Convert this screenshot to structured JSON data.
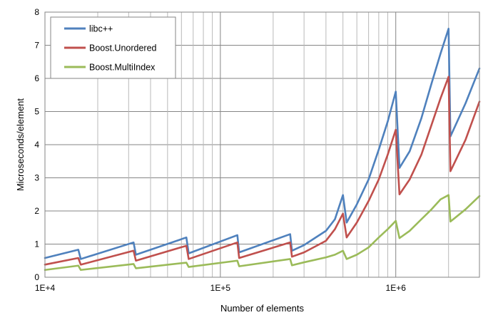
{
  "chart_data": {
    "type": "line",
    "x_scale": "log",
    "xlabel": "Number of elements",
    "ylabel": "Microseconds/element",
    "xlim": [
      10000,
      3000000
    ],
    "ylim": [
      0,
      8
    ],
    "x_ticks": [
      {
        "value": 10000,
        "label": "1E+4"
      },
      {
        "value": 100000,
        "label": "1E+5"
      },
      {
        "value": 1000000,
        "label": "1E+6"
      }
    ],
    "y_ticks": [
      0,
      1,
      2,
      3,
      4,
      5,
      6,
      7,
      8
    ],
    "grid": true,
    "legend_position": "top-left",
    "series": [
      {
        "name": "libc++",
        "color": "#4f81bd",
        "points": [
          [
            10000,
            0.58
          ],
          [
            15500,
            0.83
          ],
          [
            16000,
            0.55
          ],
          [
            32000,
            1.05
          ],
          [
            33000,
            0.68
          ],
          [
            64000,
            1.2
          ],
          [
            66000,
            0.72
          ],
          [
            125000,
            1.27
          ],
          [
            128000,
            0.75
          ],
          [
            250000,
            1.3
          ],
          [
            256000,
            0.8
          ],
          [
            300000,
            0.97
          ],
          [
            400000,
            1.4
          ],
          [
            450000,
            1.75
          ],
          [
            500000,
            2.48
          ],
          [
            525000,
            1.65
          ],
          [
            600000,
            2.2
          ],
          [
            700000,
            2.95
          ],
          [
            800000,
            3.85
          ],
          [
            900000,
            4.7
          ],
          [
            1000000,
            5.6
          ],
          [
            1050000,
            3.3
          ],
          [
            1200000,
            3.8
          ],
          [
            1400000,
            4.8
          ],
          [
            1600000,
            5.85
          ],
          [
            1800000,
            6.75
          ],
          [
            2000000,
            7.5
          ],
          [
            2050000,
            4.25
          ],
          [
            2500000,
            5.25
          ],
          [
            3000000,
            6.3
          ]
        ]
      },
      {
        "name": "Boost.Unordered",
        "color": "#c0504d",
        "points": [
          [
            10000,
            0.38
          ],
          [
            15500,
            0.58
          ],
          [
            16000,
            0.38
          ],
          [
            32000,
            0.8
          ],
          [
            33000,
            0.5
          ],
          [
            64000,
            0.95
          ],
          [
            66000,
            0.55
          ],
          [
            125000,
            1.05
          ],
          [
            128000,
            0.58
          ],
          [
            250000,
            1.05
          ],
          [
            256000,
            0.62
          ],
          [
            300000,
            0.75
          ],
          [
            400000,
            1.1
          ],
          [
            450000,
            1.45
          ],
          [
            500000,
            1.92
          ],
          [
            525000,
            1.2
          ],
          [
            600000,
            1.65
          ],
          [
            700000,
            2.3
          ],
          [
            800000,
            2.95
          ],
          [
            900000,
            3.7
          ],
          [
            1000000,
            4.45
          ],
          [
            1050000,
            2.5
          ],
          [
            1200000,
            2.95
          ],
          [
            1400000,
            3.7
          ],
          [
            1600000,
            4.6
          ],
          [
            1800000,
            5.4
          ],
          [
            2000000,
            6.05
          ],
          [
            2050000,
            3.2
          ],
          [
            2500000,
            4.15
          ],
          [
            3000000,
            5.3
          ]
        ]
      },
      {
        "name": "Boost.MultiIndex",
        "color": "#9bbb59",
        "points": [
          [
            10000,
            0.22
          ],
          [
            15500,
            0.35
          ],
          [
            16000,
            0.22
          ],
          [
            32000,
            0.4
          ],
          [
            33000,
            0.27
          ],
          [
            64000,
            0.44
          ],
          [
            66000,
            0.31
          ],
          [
            125000,
            0.5
          ],
          [
            128000,
            0.33
          ],
          [
            250000,
            0.55
          ],
          [
            256000,
            0.36
          ],
          [
            300000,
            0.45
          ],
          [
            400000,
            0.6
          ],
          [
            450000,
            0.68
          ],
          [
            500000,
            0.8
          ],
          [
            525000,
            0.55
          ],
          [
            600000,
            0.68
          ],
          [
            700000,
            0.9
          ],
          [
            800000,
            1.2
          ],
          [
            900000,
            1.45
          ],
          [
            1000000,
            1.7
          ],
          [
            1050000,
            1.18
          ],
          [
            1200000,
            1.4
          ],
          [
            1400000,
            1.75
          ],
          [
            1600000,
            2.05
          ],
          [
            1800000,
            2.35
          ],
          [
            2000000,
            2.48
          ],
          [
            2050000,
            1.68
          ],
          [
            2500000,
            2.05
          ],
          [
            3000000,
            2.45
          ]
        ]
      }
    ]
  }
}
